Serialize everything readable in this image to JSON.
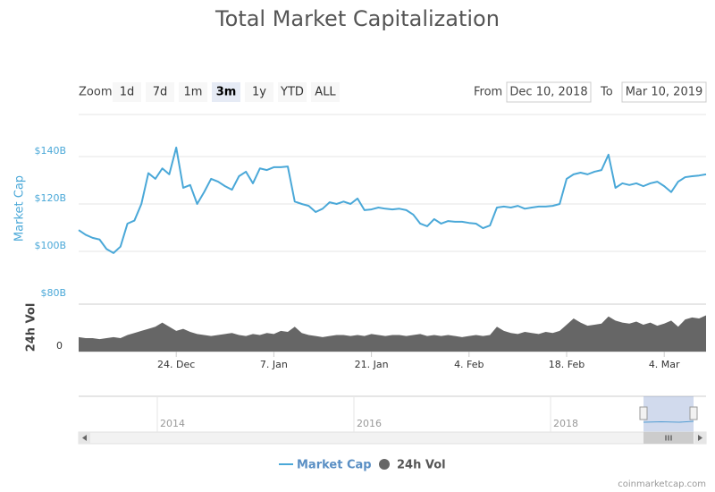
{
  "chart_data": {
    "type": "line",
    "title": "Total Market Capitalization",
    "zoom": {
      "label": "Zoom",
      "buttons": [
        "1d",
        "7d",
        "1m",
        "3m",
        "1y",
        "YTD",
        "ALL"
      ],
      "active": 3
    },
    "range_from": {
      "label": "From",
      "value": "Dec 10, 2018"
    },
    "range_to": {
      "label": "To",
      "value": "Mar 10, 2019"
    },
    "y_label": "Market Cap",
    "y2_label": "24h Vol",
    "xlim": [
      "2018-12-10",
      "2019-03-10"
    ],
    "xticks": [
      {
        "value": "2018-12-24",
        "label": "24. Dec"
      },
      {
        "value": "2019-01-07",
        "label": "7. Jan"
      },
      {
        "value": "2019-01-21",
        "label": "21. Jan"
      },
      {
        "value": "2019-02-04",
        "label": "4. Feb"
      },
      {
        "value": "2019-02-18",
        "label": "18. Feb"
      },
      {
        "value": "2019-03-04",
        "label": "4. Mar"
      }
    ],
    "ylim": [
      80,
      160
    ],
    "yticks": [
      {
        "value": 80,
        "label": "$80B"
      },
      {
        "value": 100,
        "label": "$100B"
      },
      {
        "value": 120,
        "label": "$120B"
      },
      {
        "value": 140,
        "label": "$140B"
      }
    ],
    "y2lim": [
      0,
      45
    ],
    "y2ticks": [
      0
    ],
    "grid": true,
    "x": [
      "2018-12-10",
      "2018-12-11",
      "2018-12-12",
      "2018-12-13",
      "2018-12-14",
      "2018-12-15",
      "2018-12-16",
      "2018-12-17",
      "2018-12-18",
      "2018-12-19",
      "2018-12-20",
      "2018-12-21",
      "2018-12-22",
      "2018-12-23",
      "2018-12-24",
      "2018-12-25",
      "2018-12-26",
      "2018-12-27",
      "2018-12-28",
      "2018-12-29",
      "2018-12-30",
      "2018-12-31",
      "2019-01-01",
      "2019-01-02",
      "2019-01-03",
      "2019-01-04",
      "2019-01-05",
      "2019-01-06",
      "2019-01-07",
      "2019-01-08",
      "2019-01-09",
      "2019-01-10",
      "2019-01-11",
      "2019-01-12",
      "2019-01-13",
      "2019-01-14",
      "2019-01-15",
      "2019-01-16",
      "2019-01-17",
      "2019-01-18",
      "2019-01-19",
      "2019-01-20",
      "2019-01-21",
      "2019-01-22",
      "2019-01-23",
      "2019-01-24",
      "2019-01-25",
      "2019-01-26",
      "2019-01-27",
      "2019-01-28",
      "2019-01-29",
      "2019-01-30",
      "2019-01-31",
      "2019-02-01",
      "2019-02-02",
      "2019-02-03",
      "2019-02-04",
      "2019-02-05",
      "2019-02-06",
      "2019-02-07",
      "2019-02-08",
      "2019-02-09",
      "2019-02-10",
      "2019-02-11",
      "2019-02-12",
      "2019-02-13",
      "2019-02-14",
      "2019-02-15",
      "2019-02-16",
      "2019-02-17",
      "2019-02-18",
      "2019-02-19",
      "2019-02-20",
      "2019-02-21",
      "2019-02-22",
      "2019-02-23",
      "2019-02-24",
      "2019-02-25",
      "2019-02-26",
      "2019-02-27",
      "2019-02-28",
      "2019-03-01",
      "2019-03-02",
      "2019-03-03",
      "2019-03-04",
      "2019-03-05",
      "2019-03-06",
      "2019-03-07",
      "2019-03-08",
      "2019-03-09",
      "2019-03-10"
    ],
    "series": [
      {
        "name": "Market Cap",
        "color": "#4aa8d8",
        "axis": "y",
        "values": [
          109,
          107,
          105.7,
          105,
          101,
          99.3,
          102,
          111.7,
          113,
          120,
          133,
          130.6,
          135,
          132.5,
          143.8,
          126.8,
          128,
          120,
          125,
          130.6,
          129.4,
          127.5,
          126,
          131.7,
          133.6,
          128.7,
          135,
          134.3,
          135.5,
          135.5,
          135.8,
          121,
          120,
          119.2,
          116.6,
          118,
          120.7,
          120,
          121,
          120,
          122.3,
          117.4,
          117.7,
          118.5,
          118,
          117.7,
          118,
          117.4,
          115.5,
          111.7,
          110.6,
          113.6,
          111.7,
          112.8,
          112.5,
          112.5,
          112,
          111.7,
          109.8,
          110.9,
          118.5,
          118.9,
          118.5,
          119.2,
          118,
          118.5,
          118.9,
          118.9,
          119.2,
          120,
          130.6,
          132.5,
          133.2,
          132.5,
          133.6,
          134.3,
          140.8,
          126.8,
          128.7,
          128,
          128.7,
          127.5,
          128.7,
          129.4,
          127.5,
          125,
          129.4,
          131.3,
          131.7,
          132,
          132.5
        ]
      },
      {
        "name": "24h Vol",
        "color": "#666666",
        "axis": "y2",
        "values": [
          14,
          13,
          13,
          12,
          13,
          14,
          13,
          16,
          18,
          20,
          22,
          24,
          28,
          24,
          20,
          22,
          19,
          17,
          16,
          15,
          16,
          17,
          18,
          16,
          15,
          17,
          16,
          18,
          17,
          20,
          19,
          24,
          18,
          16,
          15,
          14,
          15,
          16,
          16,
          15,
          16,
          15,
          17,
          16,
          15,
          16,
          16,
          15,
          16,
          17,
          15,
          16,
          15,
          16,
          15,
          14,
          15,
          16,
          15,
          16,
          24,
          20,
          18,
          17,
          19,
          18,
          17,
          19,
          18,
          20,
          26,
          32,
          28,
          25,
          26,
          27,
          34,
          30,
          28,
          27,
          29,
          26,
          28,
          25,
          27,
          30,
          24,
          31,
          33,
          32,
          35
        ]
      }
    ],
    "navigator": {
      "xticks": [
        "2014",
        "2016",
        "2018"
      ]
    },
    "credit": "coinmarketcap.com"
  }
}
